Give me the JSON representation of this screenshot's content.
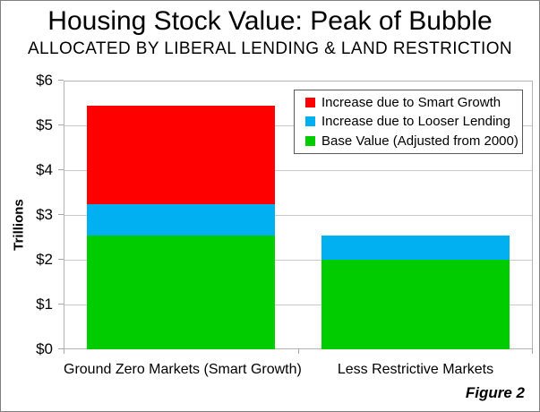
{
  "title": "Housing Stock Value: Peak of Bubble",
  "subtitle": "ALLOCATED BY LIBERAL LENDING & LAND RESTRICTION",
  "figure_label": "Figure 2",
  "chart_data": {
    "type": "bar",
    "stacked": true,
    "title": "Housing Stock Value: Peak of Bubble",
    "subtitle": "ALLOCATED BY LIBERAL LENDING & LAND RESTRICTION",
    "categories": [
      "Ground Zero Markets (Smart Growth)",
      "Less Restrictive Markets"
    ],
    "series": [
      {
        "name": "Base Value (Adjusted from 2000)",
        "color": "#00cc00",
        "values": [
          2.55,
          2.0
        ]
      },
      {
        "name": "Increase due to Looser Lending",
        "color": "#00b0f0",
        "values": [
          0.7,
          0.55
        ]
      },
      {
        "name": "Increase due to Smart Growth",
        "color": "#ff0000",
        "values": [
          2.2,
          0
        ]
      }
    ],
    "xlabel": "",
    "ylabel": "Trillions",
    "ylim": [
      0,
      6
    ],
    "ytick_labels": [
      "$0",
      "$1",
      "$2",
      "$3",
      "$4",
      "$5",
      "$6"
    ],
    "grid": true,
    "legend_position": "top-right",
    "legend": [
      {
        "label": "Increase due to Smart Growth",
        "color": "#ff0000"
      },
      {
        "label": "Increase due to Looser Lending",
        "color": "#00b0f0"
      },
      {
        "label": "Base Value (Adjusted from 2000)",
        "color": "#00cc00"
      }
    ]
  },
  "colors": {
    "smart_growth": "#ff0000",
    "looser_lending": "#00b0f0",
    "base_value": "#00cc00",
    "gridline": "#c9c9c9",
    "axis": "#a6a6a6",
    "border": "#808080"
  }
}
